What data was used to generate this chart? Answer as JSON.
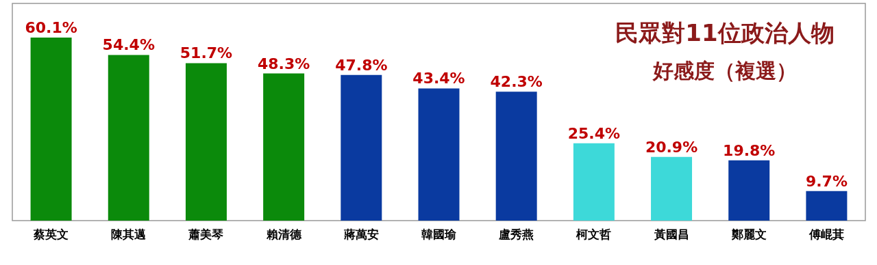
{
  "chart_data": {
    "type": "bar",
    "title": "民眾對11位政治人物",
    "subtitle": "好感度（複選）",
    "categories": [
      "蔡英文",
      "陳其邁",
      "蕭美琴",
      "賴清德",
      "蔣萬安",
      "韓國瑜",
      "盧秀燕",
      "柯文哲",
      "黃國昌",
      "鄭麗文",
      "傅崐萁"
    ],
    "values": [
      60.1,
      54.4,
      51.7,
      48.3,
      47.8,
      43.4,
      42.3,
      25.4,
      20.9,
      19.8,
      9.7
    ],
    "colors": [
      "#0b8a0b",
      "#0b8a0b",
      "#0b8a0b",
      "#0b8a0b",
      "#0a3aa0",
      "#0a3aa0",
      "#0a3aa0",
      "#3dd9d9",
      "#3dd9d9",
      "#0a3aa0",
      "#0a3aa0"
    ],
    "value_labels": [
      "60.1%",
      "54.4%",
      "51.7%",
      "48.3%",
      "47.8%",
      "43.4%",
      "42.3%",
      "25.4%",
      "20.9%",
      "19.8%",
      "9.7%"
    ],
    "grid": false
  }
}
